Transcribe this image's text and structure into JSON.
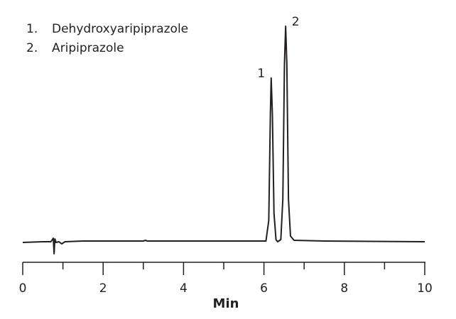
{
  "chart_data": {
    "type": "line",
    "xlabel": "Min",
    "legend": [
      {
        "number": "1.",
        "name": "Dehydroxyaripiprazole"
      },
      {
        "number": "2.",
        "name": "Aripiprazole"
      }
    ],
    "annotations": [
      {
        "text": "1",
        "x": 6.18,
        "y": 231
      },
      {
        "text": "2",
        "x": 6.54,
        "y": 304
      }
    ],
    "x": [
      0,
      0.5,
      0.7,
      0.76,
      0.78,
      0.8,
      0.83,
      0.9,
      0.97,
      1.05,
      1.5,
      3.0,
      3.05,
      3.1,
      5.0,
      6.05,
      6.12,
      6.16,
      6.18,
      6.21,
      6.25,
      6.3,
      6.34,
      6.42,
      6.47,
      6.51,
      6.54,
      6.57,
      6.61,
      6.66,
      6.75,
      7.5,
      10
    ],
    "values": [
      -1,
      0,
      0,
      5,
      -17,
      4,
      -1,
      0,
      -3,
      0,
      1,
      1,
      2,
      1,
      1,
      1,
      30,
      180,
      231,
      180,
      40,
      3,
      0,
      3,
      60,
      250,
      304,
      250,
      60,
      8,
      2,
      1,
      0
    ],
    "color": "#231f20",
    "xlim": [
      0,
      10
    ],
    "ylim": [
      -40,
      320
    ],
    "xticks": [
      0,
      2,
      4,
      6,
      8,
      10
    ],
    "minor_xticks": [
      1,
      3,
      5,
      7,
      9
    ]
  }
}
